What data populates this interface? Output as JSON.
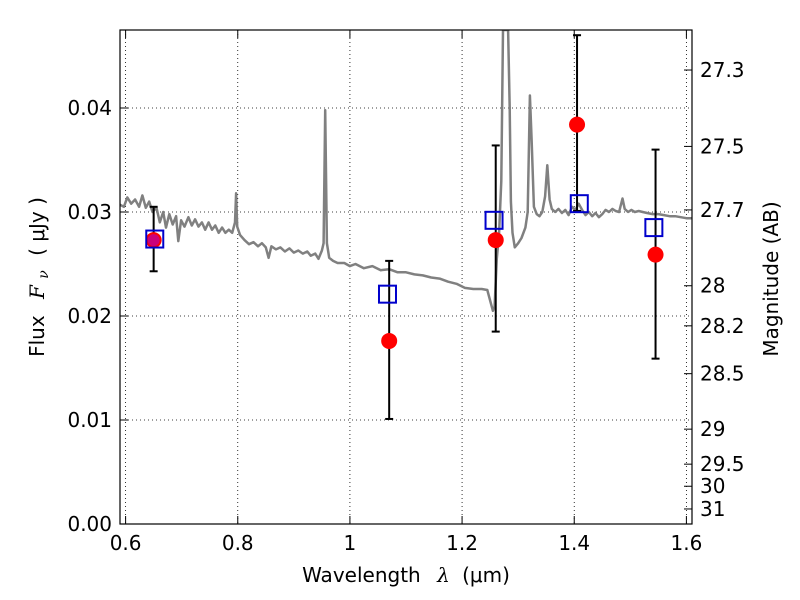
{
  "chart_data": {
    "type": "scatter",
    "title": "",
    "xlabel": "Wavelength",
    "xlabel_symbol": "λ",
    "xlabel_unit": "(μm)",
    "ylabel": "Flux",
    "ylabel_symbol": "F",
    "ylabel_subscript": "ν",
    "ylabel_unit": "( μJy )",
    "ylabel_right": "Magnitude (AB)",
    "xlim": [
      0.59,
      1.61
    ],
    "ylim": [
      0.0,
      0.0475
    ],
    "grid": true,
    "x_ticks": [
      {
        "value": 0.6,
        "label": "0.6"
      },
      {
        "value": 0.8,
        "label": "0.8"
      },
      {
        "value": 1.0,
        "label": "1"
      },
      {
        "value": 1.2,
        "label": "1.2"
      },
      {
        "value": 1.4,
        "label": "1.4"
      },
      {
        "value": 1.6,
        "label": "1.6"
      }
    ],
    "y_ticks": [
      {
        "value": 0.0,
        "label": "0.00"
      },
      {
        "value": 0.01,
        "label": "0.01"
      },
      {
        "value": 0.02,
        "label": "0.02"
      },
      {
        "value": 0.03,
        "label": "0.03"
      },
      {
        "value": 0.04,
        "label": "0.04"
      }
    ],
    "right_ticks": [
      {
        "mag": 27.3,
        "label": "27.3"
      },
      {
        "mag": 27.5,
        "label": "27.5"
      },
      {
        "mag": 27.7,
        "label": "27.7"
      },
      {
        "mag": 28.0,
        "label": "28"
      },
      {
        "mag": 28.2,
        "label": "28.2"
      },
      {
        "mag": 28.5,
        "label": "28.5"
      },
      {
        "mag": 29.0,
        "label": "29"
      },
      {
        "mag": 29.5,
        "label": "29.5"
      },
      {
        "mag": 30.0,
        "label": "30"
      },
      {
        "mag": 31.0,
        "label": "31"
      }
    ],
    "series": [
      {
        "kind": "line",
        "color": "#808080",
        "points": [
          [
            0.59,
            0.0307
          ],
          [
            0.597,
            0.0305
          ],
          [
            0.603,
            0.0314
          ],
          [
            0.61,
            0.0308
          ],
          [
            0.617,
            0.0312
          ],
          [
            0.624,
            0.0305
          ],
          [
            0.63,
            0.0316
          ],
          [
            0.636,
            0.0304
          ],
          [
            0.642,
            0.031
          ],
          [
            0.648,
            0.03
          ],
          [
            0.655,
            0.0304
          ],
          [
            0.661,
            0.029
          ],
          [
            0.667,
            0.03
          ],
          [
            0.672,
            0.0285
          ],
          [
            0.678,
            0.0298
          ],
          [
            0.684,
            0.0288
          ],
          [
            0.69,
            0.0296
          ],
          [
            0.694,
            0.0272
          ],
          [
            0.699,
            0.0292
          ],
          [
            0.705,
            0.0286
          ],
          [
            0.712,
            0.0295
          ],
          [
            0.718,
            0.0287
          ],
          [
            0.724,
            0.0293
          ],
          [
            0.73,
            0.0286
          ],
          [
            0.736,
            0.029
          ],
          [
            0.742,
            0.0283
          ],
          [
            0.748,
            0.029
          ],
          [
            0.754,
            0.0283
          ],
          [
            0.76,
            0.0287
          ],
          [
            0.766,
            0.028
          ],
          [
            0.772,
            0.0285
          ],
          [
            0.778,
            0.028
          ],
          [
            0.784,
            0.0283
          ],
          [
            0.79,
            0.028
          ],
          [
            0.795,
            0.029
          ],
          [
            0.797,
            0.0318
          ],
          [
            0.799,
            0.0286
          ],
          [
            0.804,
            0.0278
          ],
          [
            0.812,
            0.0273
          ],
          [
            0.82,
            0.0269
          ],
          [
            0.828,
            0.0271
          ],
          [
            0.836,
            0.0267
          ],
          [
            0.843,
            0.027
          ],
          [
            0.85,
            0.0266
          ],
          [
            0.855,
            0.0256
          ],
          [
            0.86,
            0.0267
          ],
          [
            0.868,
            0.0264
          ],
          [
            0.876,
            0.0266
          ],
          [
            0.884,
            0.0262
          ],
          [
            0.892,
            0.0265
          ],
          [
            0.9,
            0.0261
          ],
          [
            0.908,
            0.0263
          ],
          [
            0.916,
            0.026
          ],
          [
            0.924,
            0.0262
          ],
          [
            0.93,
            0.0258
          ],
          [
            0.938,
            0.026
          ],
          [
            0.944,
            0.0255
          ],
          [
            0.95,
            0.0263
          ],
          [
            0.953,
            0.027
          ],
          [
            0.956,
            0.0398
          ],
          [
            0.959,
            0.027
          ],
          [
            0.963,
            0.0256
          ],
          [
            0.97,
            0.0253
          ],
          [
            0.978,
            0.0251
          ],
          [
            0.99,
            0.0251
          ],
          [
            1.0,
            0.0248
          ],
          [
            1.01,
            0.025
          ],
          [
            1.025,
            0.0246
          ],
          [
            1.04,
            0.0248
          ],
          [
            1.055,
            0.0244
          ],
          [
            1.07,
            0.0245
          ],
          [
            1.085,
            0.0242
          ],
          [
            1.1,
            0.0242
          ],
          [
            1.115,
            0.024
          ],
          [
            1.13,
            0.0239
          ],
          [
            1.145,
            0.0237
          ],
          [
            1.16,
            0.0236
          ],
          [
            1.175,
            0.0233
          ],
          [
            1.19,
            0.0231
          ],
          [
            1.205,
            0.0227
          ],
          [
            1.22,
            0.0226
          ],
          [
            1.235,
            0.0226
          ],
          [
            1.245,
            0.0225
          ],
          [
            1.25,
            0.0215
          ],
          [
            1.255,
            0.0205
          ],
          [
            1.258,
            0.0209
          ],
          [
            1.262,
            0.0255
          ],
          [
            1.266,
            0.028
          ],
          [
            1.27,
            0.033
          ],
          [
            1.273,
            0.0475
          ],
          [
            1.276,
            0.0475
          ],
          [
            1.28,
            0.0475
          ],
          [
            1.282,
            0.0475
          ],
          [
            1.285,
            0.04
          ],
          [
            1.287,
            0.031
          ],
          [
            1.29,
            0.028
          ],
          [
            1.294,
            0.0266
          ],
          [
            1.3,
            0.027
          ],
          [
            1.306,
            0.0275
          ],
          [
            1.313,
            0.0285
          ],
          [
            1.317,
            0.03
          ],
          [
            1.321,
            0.0412
          ],
          [
            1.324,
            0.037
          ],
          [
            1.328,
            0.0305
          ],
          [
            1.333,
            0.0298
          ],
          [
            1.338,
            0.0296
          ],
          [
            1.343,
            0.03
          ],
          [
            1.348,
            0.0315
          ],
          [
            1.352,
            0.0345
          ],
          [
            1.356,
            0.0312
          ],
          [
            1.36,
            0.0303
          ],
          [
            1.366,
            0.03
          ],
          [
            1.372,
            0.0303
          ],
          [
            1.378,
            0.0299
          ],
          [
            1.384,
            0.0302
          ],
          [
            1.39,
            0.0297
          ],
          [
            1.396,
            0.0305
          ],
          [
            1.402,
            0.0302
          ],
          [
            1.408,
            0.0308
          ],
          [
            1.414,
            0.0302
          ],
          [
            1.42,
            0.0297
          ],
          [
            1.426,
            0.03
          ],
          [
            1.432,
            0.0296
          ],
          [
            1.438,
            0.0299
          ],
          [
            1.444,
            0.0295
          ],
          [
            1.45,
            0.0298
          ],
          [
            1.456,
            0.0302
          ],
          [
            1.462,
            0.03
          ],
          [
            1.468,
            0.0303
          ],
          [
            1.474,
            0.0301
          ],
          [
            1.48,
            0.03
          ],
          [
            1.486,
            0.0313
          ],
          [
            1.49,
            0.0303
          ],
          [
            1.496,
            0.03
          ],
          [
            1.502,
            0.0302
          ],
          [
            1.508,
            0.03
          ],
          [
            1.515,
            0.0301
          ],
          [
            1.522,
            0.03
          ],
          [
            1.53,
            0.0299
          ],
          [
            1.54,
            0.0298
          ],
          [
            1.55,
            0.0298
          ],
          [
            1.56,
            0.0297
          ],
          [
            1.57,
            0.0296
          ],
          [
            1.58,
            0.0296
          ],
          [
            1.59,
            0.0295
          ],
          [
            1.6,
            0.0294
          ],
          [
            1.61,
            0.0294
          ]
        ]
      },
      {
        "kind": "errorbar",
        "color": "#000000",
        "points": [
          {
            "x": 0.65,
            "y": 0.0273,
            "ylo": 0.0243,
            "yhi": 0.0305
          },
          {
            "x": 1.07,
            "y": 0.0176,
            "ylo": 0.0101,
            "yhi": 0.0253
          },
          {
            "x": 1.26,
            "y": 0.0273,
            "ylo": 0.0185,
            "yhi": 0.0364
          },
          {
            "x": 1.405,
            "y": 0.0384,
            "ylo": 0.0301,
            "yhi": 0.047
          },
          {
            "x": 1.545,
            "y": 0.0259,
            "ylo": 0.0159,
            "yhi": 0.036
          }
        ]
      },
      {
        "kind": "markers",
        "marker": "circle",
        "color": "#ff0000",
        "points": [
          [
            0.65,
            0.0273
          ],
          [
            1.07,
            0.0176
          ],
          [
            1.26,
            0.0273
          ],
          [
            1.405,
            0.0384
          ],
          [
            1.545,
            0.0259
          ]
        ]
      },
      {
        "kind": "markers",
        "marker": "open-square",
        "color": "#0000cc",
        "points": [
          [
            0.652,
            0.0274
          ],
          [
            1.067,
            0.0221
          ],
          [
            1.257,
            0.0292
          ],
          [
            1.409,
            0.0308
          ],
          [
            1.542,
            0.0285
          ]
        ]
      }
    ]
  }
}
